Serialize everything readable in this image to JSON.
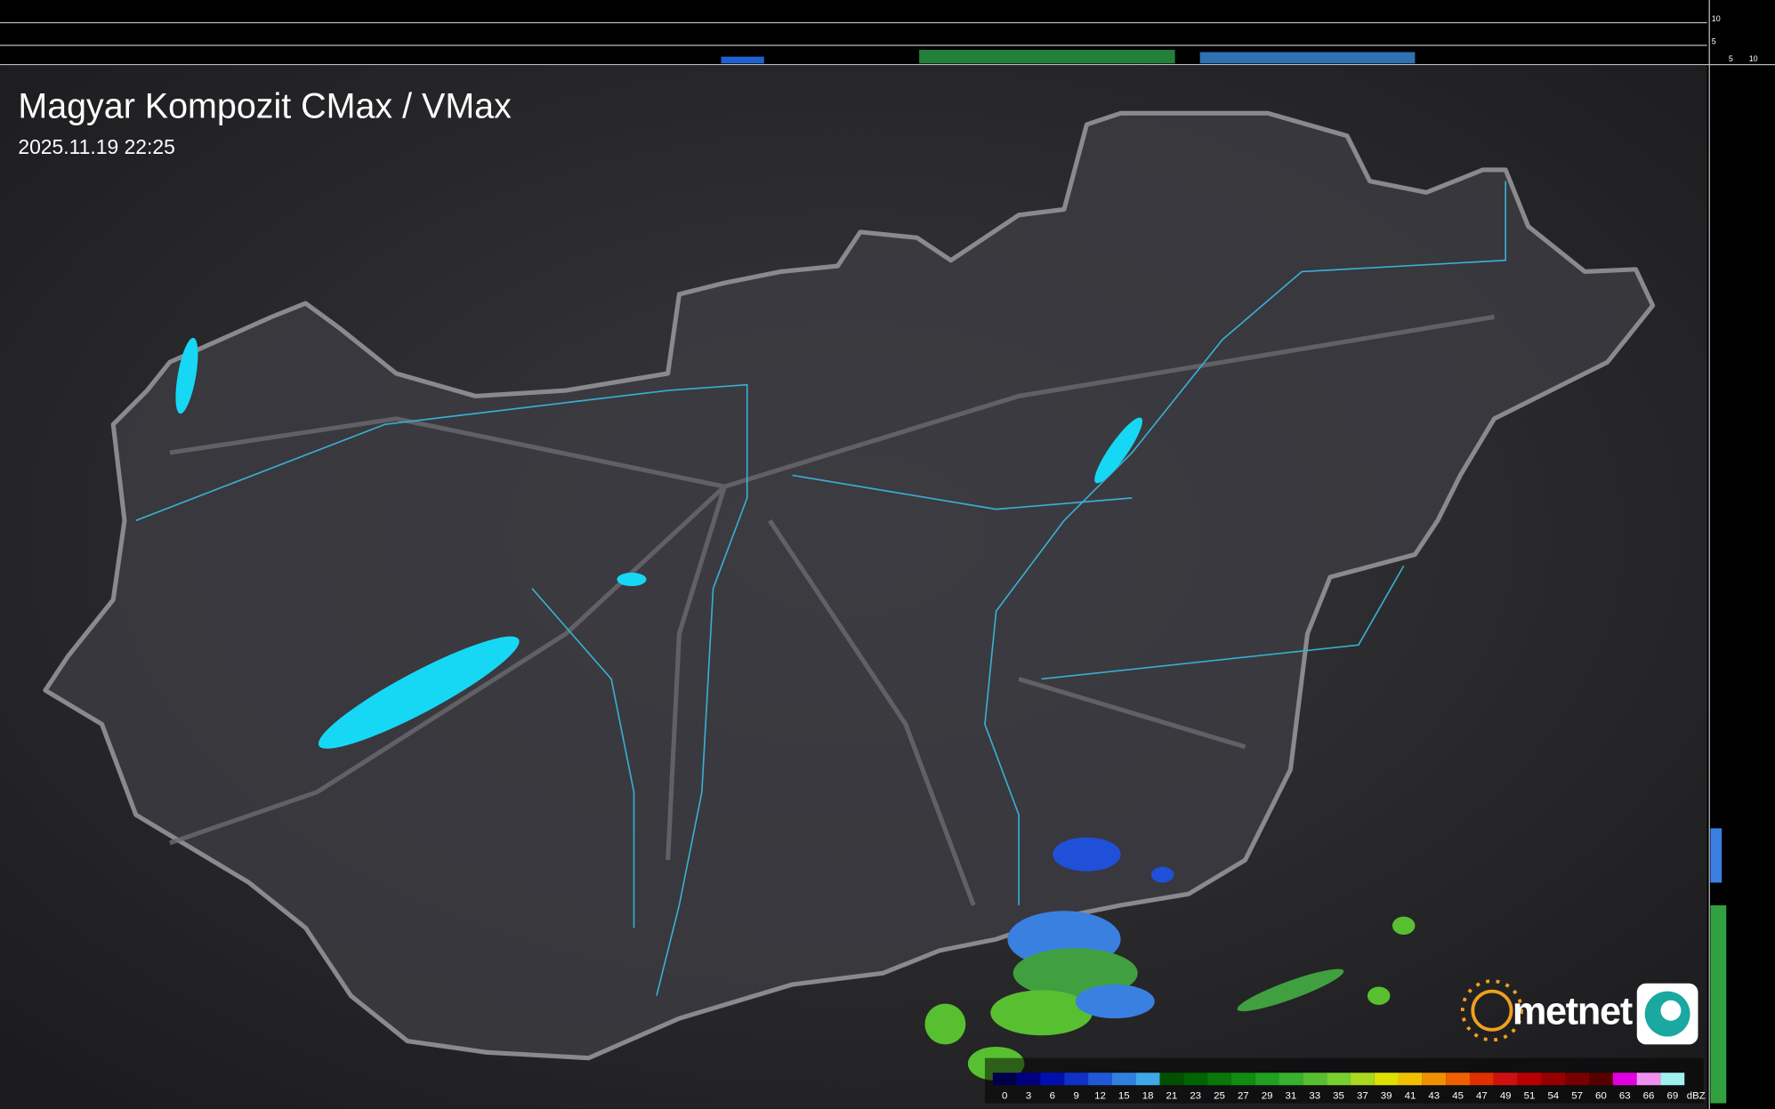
{
  "header": {
    "title": "Magyar Kompozit CMax / VMax",
    "timestamp": "2025.11.19 22:25"
  },
  "profile_axes": {
    "top_ticks": [
      "10",
      "5"
    ],
    "side_ticks": [
      "5",
      "10"
    ]
  },
  "logo": {
    "text": "metnet"
  },
  "legend": {
    "labels": [
      0,
      3,
      6,
      9,
      12,
      15,
      18,
      21,
      23,
      25,
      27,
      29,
      31,
      33,
      35,
      37,
      39,
      41,
      43,
      45,
      47,
      49,
      51,
      54,
      57,
      60,
      63,
      66,
      69
    ],
    "unit": "dBZ",
    "colors": [
      "#00004a",
      "#000080",
      "#0010b0",
      "#1030c8",
      "#2058d8",
      "#3080e0",
      "#40a8e8",
      "#005000",
      "#006400",
      "#087808",
      "#108c10",
      "#20a020",
      "#38b030",
      "#58c030",
      "#78d030",
      "#a8d820",
      "#e0e000",
      "#f0c000",
      "#f09000",
      "#f06000",
      "#e03000",
      "#d01010",
      "#b80000",
      "#980000",
      "#780000",
      "#580000",
      "#e000e0",
      "#f090f0",
      "#a0f0f0"
    ]
  }
}
